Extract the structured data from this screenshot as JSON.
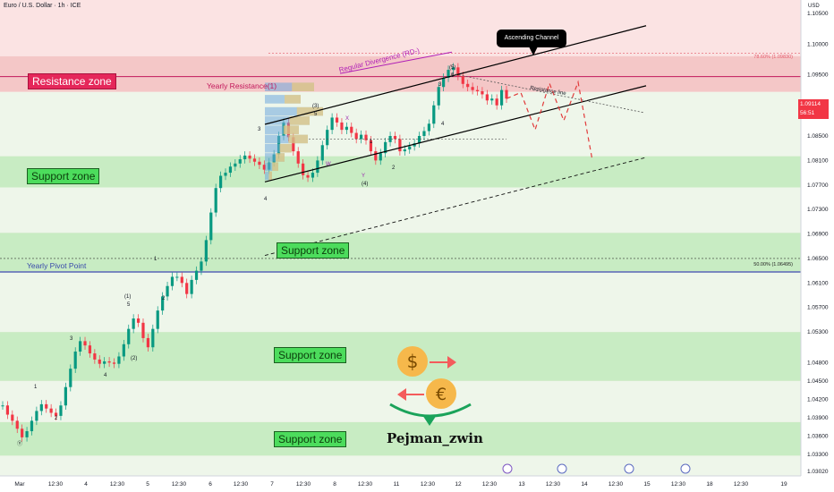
{
  "symbol": "Euro / U.S. Dollar · 1h · ICE",
  "currency": "USD",
  "colors": {
    "resistance_zone": "#f4c7c7",
    "support_zone": "#c8ecc3",
    "pink_band": "#fbe3e3",
    "up_candle": "#089981",
    "down_candle": "#f23645",
    "channel": "#000000",
    "pivot_line": "#3949ab",
    "yearly_resistance": "#c2185b",
    "divergence": "#b01fb6"
  },
  "labels": {
    "resistance_zone": "Resistance zone",
    "support_zone": "Support zone",
    "yearly_resistance": "Yearly Resistance(1)",
    "yearly_pivot": "Yearly Pivot Point",
    "ascending_channel": "Ascending Channel",
    "regular_divergence": "Regular Divergence (RD-)",
    "resistance_line": "Resistance line",
    "fib_top": "78.60% (1.09830)",
    "fib_mid": "50.00% (1.06495)",
    "brand": "Pejman_zwin"
  },
  "price_tag": {
    "price": "1.09114",
    "countdown": "56:51"
  },
  "chart_data": {
    "type": "line",
    "title": "Euro / U.S. Dollar · 1h · ICE",
    "ylim": [
      1.0295,
      1.1072
    ],
    "y_ticks": [
      "1.10500",
      "1.10000",
      "1.09500",
      "1.09114",
      "1.08500",
      "1.08100",
      "1.07700",
      "1.07300",
      "1.06900",
      "1.06500",
      "1.06100",
      "1.05700",
      "1.05300",
      "1.04800",
      "1.04500",
      "1.04200",
      "1.03900",
      "1.03600",
      "1.03300",
      "1.03020"
    ],
    "x_ticks": [
      "Mar",
      "12:30",
      "4",
      "12:30",
      "5",
      "12:30",
      "6",
      "12:30",
      "7",
      "12:30",
      "8",
      "12:30",
      "11",
      "12:30",
      "12",
      "12:30",
      "13",
      "12:30",
      "14",
      "12:30",
      "15",
      "12:30",
      "18",
      "12:30",
      "19"
    ],
    "zones": [
      {
        "name": "Resistance zone",
        "from": 1.0922,
        "to": 1.098
      },
      {
        "name": "Support zone",
        "from": 1.0766,
        "to": 1.0817
      },
      {
        "name": "Support zone",
        "from": 1.0629,
        "to": 1.0692
      },
      {
        "name": "Support zone",
        "from": 1.045,
        "to": 1.053
      },
      {
        "name": "Support zone",
        "from": 1.0328,
        "to": 1.0383
      }
    ],
    "series": [
      {
        "values": [
          1.041,
          1.0395,
          1.0385,
          1.0372,
          1.0358,
          1.0368,
          1.0385,
          1.0401,
          1.0412,
          1.0405,
          1.0398,
          1.0393,
          1.041,
          1.044,
          1.047,
          1.0498,
          1.0515,
          1.0508,
          1.0495,
          1.0485,
          1.0478,
          1.0482,
          1.048,
          1.0478,
          1.049,
          1.051,
          1.0535,
          1.0552,
          1.0545,
          1.052,
          1.0505,
          1.0535,
          1.0565,
          1.0588,
          1.0605,
          1.062,
          1.062,
          1.061,
          1.0592,
          1.0615,
          1.063,
          1.0645,
          1.068,
          1.0725,
          1.0765,
          1.0785,
          1.079,
          1.08,
          1.0805,
          1.0812,
          1.0818,
          1.0813,
          1.0808,
          1.0803,
          1.0795,
          1.0807,
          1.082,
          1.085,
          1.0872,
          1.0848,
          1.0825,
          1.0805,
          1.0786,
          1.0782,
          1.079,
          1.081,
          1.0835,
          1.086,
          1.088,
          1.0872,
          1.086,
          1.0865,
          1.0855,
          1.0845,
          1.0852,
          1.0843,
          1.0825,
          1.081,
          1.0822,
          1.084,
          1.085,
          1.0845,
          1.0825,
          1.0828,
          1.0833,
          1.0838,
          1.085,
          1.0858,
          1.087,
          1.09,
          1.093,
          1.0945,
          1.0958,
          1.0962,
          1.0948,
          1.0935,
          1.093,
          1.0925,
          1.0923,
          1.0918,
          1.0908,
          1.0911,
          1.09,
          1.0925,
          1.0911
        ]
      },
      {
        "values": [
          1.0911,
          1.0921,
          1.086,
          1.0936,
          1.0875,
          1.0938,
          1.081
        ]
      }
    ]
  }
}
